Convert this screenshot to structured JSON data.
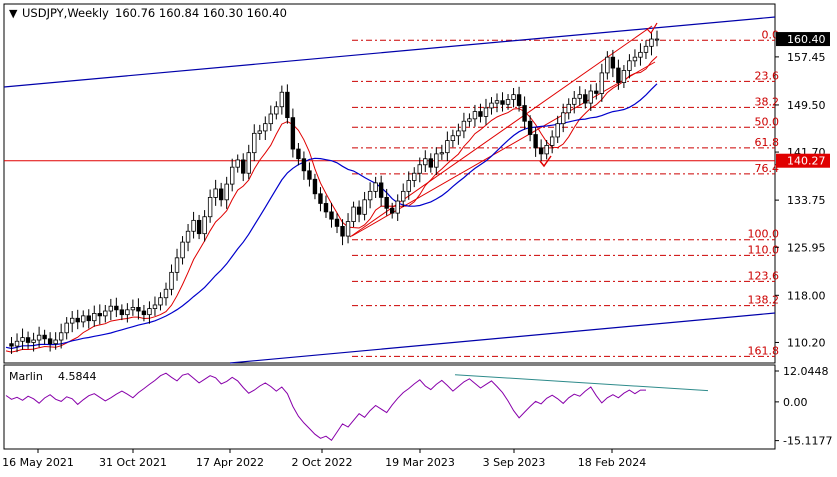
{
  "chart_data": [
    {
      "type": "candlestick",
      "title": "USDJPY,Weekly",
      "ohlc_text": "160.76 160.84 160.30 160.40",
      "x_labels": [
        "16 May 2021",
        "31 Oct 2021",
        "17 Apr 2022",
        "2 Oct 2022",
        "19 Mar 2023",
        "3 Sep 2023",
        "18 Feb 2024"
      ],
      "y_ticks": [
        110.2,
        118.0,
        125.95,
        133.75,
        141.7,
        149.5,
        157.45
      ],
      "ylim": [
        106.8,
        166.2
      ],
      "last_price": 160.4,
      "horizontal_level": 140.27,
      "fib_levels": [
        {
          "label": "0.0",
          "value": 160.2
        },
        {
          "label": "23.6",
          "value": 153.4
        },
        {
          "label": "38.2",
          "value": 149.1
        },
        {
          "label": "50.0",
          "value": 145.8
        },
        {
          "label": "61.8",
          "value": 142.4
        },
        {
          "label": "76.4",
          "value": 138.1
        },
        {
          "label": "100.0",
          "value": 127.2
        },
        {
          "label": "110.0",
          "value": 124.6
        },
        {
          "label": "123.6",
          "value": 120.3
        },
        {
          "label": "138.2",
          "value": 116.3
        },
        {
          "label": "161.8",
          "value": 107.9
        }
      ],
      "price_path": [
        110.0,
        109.6,
        110.4,
        111.0,
        110.2,
        110.6,
        111.4,
        110.8,
        110.0,
        110.6,
        111.8,
        113.4,
        114.2,
        113.6,
        114.6,
        113.8,
        115.0,
        114.6,
        115.4,
        116.2,
        115.6,
        114.8,
        115.6,
        116.0,
        115.4,
        114.8,
        115.8,
        116.4,
        117.6,
        119.0,
        121.8,
        124.2,
        126.8,
        128.6,
        130.4,
        128.2,
        131.0,
        134.2,
        135.6,
        133.8,
        136.4,
        139.2,
        140.4,
        138.2,
        141.6,
        144.8,
        145.2,
        146.4,
        148.0,
        149.2,
        151.6,
        147.4,
        142.2,
        140.6,
        138.6,
        137.2,
        134.8,
        133.2,
        131.8,
        130.6,
        129.4,
        127.8,
        130.2,
        132.6,
        131.4,
        133.8,
        135.2,
        136.6,
        134.2,
        132.4,
        131.6,
        133.6,
        135.2,
        137.0,
        138.2,
        139.6,
        140.6,
        139.2,
        141.4,
        141.6,
        143.6,
        144.4,
        145.2,
        146.8,
        147.2,
        148.4,
        147.6,
        149.0,
        149.8,
        150.2,
        149.6,
        150.4,
        151.2,
        149.4,
        146.8,
        144.6,
        142.4,
        141.4,
        142.8,
        144.2,
        146.4,
        148.2,
        149.6,
        150.6,
        151.2,
        149.8,
        151.8,
        151.4,
        154.8,
        157.4,
        155.6,
        153.2,
        155.2,
        156.8,
        157.4,
        158.2,
        159.2,
        160.4,
        160.4
      ],
      "indicator": {
        "name": "Marlin",
        "value_label": "4.5844",
        "ticks": [
          12.0448,
          0.0,
          -15.1177
        ],
        "ylim": [
          -18,
          14
        ],
        "values": [
          2.5,
          1.0,
          1.8,
          0.6,
          2.2,
          1.2,
          -0.5,
          1.5,
          2.8,
          1.0,
          0.2,
          2.0,
          1.2,
          -1.0,
          0.8,
          2.4,
          3.2,
          1.8,
          0.4,
          1.6,
          3.0,
          4.2,
          3.0,
          1.6,
          3.6,
          5.2,
          6.8,
          8.4,
          10.2,
          11.2,
          9.6,
          8.2,
          10.4,
          11.0,
          9.2,
          7.4,
          8.8,
          10.2,
          9.4,
          7.0,
          8.0,
          9.6,
          8.2,
          5.6,
          3.4,
          4.6,
          6.2,
          7.4,
          6.0,
          4.2,
          5.8,
          3.2,
          -1.8,
          -5.6,
          -8.2,
          -10.4,
          -12.6,
          -14.2,
          -13.4,
          -15.0,
          -11.8,
          -8.6,
          -9.8,
          -7.2,
          -4.6,
          -6.0,
          -3.4,
          -1.4,
          -2.8,
          -4.2,
          -1.2,
          1.4,
          3.6,
          5.2,
          7.0,
          8.6,
          6.2,
          4.8,
          6.8,
          8.4,
          6.4,
          4.2,
          6.0,
          7.8,
          9.0,
          7.2,
          5.4,
          6.8,
          8.2,
          6.0,
          3.6,
          0.4,
          -3.4,
          -6.2,
          -4.0,
          -1.8,
          0.2,
          -0.8,
          1.4,
          2.6,
          1.2,
          -0.6,
          1.6,
          3.0,
          2.2,
          4.2,
          5.8,
          2.4,
          -0.4,
          1.6,
          2.8,
          1.6,
          3.4,
          4.6,
          3.2,
          4.6,
          4.6
        ]
      }
    }
  ]
}
